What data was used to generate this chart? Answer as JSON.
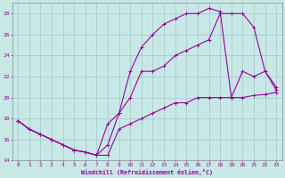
{
  "xlabel": "Windchill (Refroidissement éolien,°C)",
  "background_color": "#c8e8e8",
  "line_color": "#990099",
  "xlim": [
    -0.5,
    23.5
  ],
  "ylim": [
    14,
    29
  ],
  "xticks": [
    0,
    1,
    2,
    3,
    4,
    5,
    6,
    7,
    8,
    9,
    10,
    11,
    12,
    13,
    14,
    15,
    16,
    17,
    18,
    19,
    20,
    21,
    22,
    23
  ],
  "yticks": [
    14,
    16,
    18,
    20,
    22,
    24,
    26,
    28
  ],
  "grid_color": "#aacccc",
  "line1_x": [
    0,
    1,
    2,
    3,
    4,
    5,
    6,
    7,
    8,
    9,
    10,
    11,
    12,
    13,
    14,
    15,
    16,
    17,
    18,
    19,
    20,
    21,
    22,
    23
  ],
  "line1_y": [
    17.8,
    17.0,
    16.5,
    16.0,
    15.5,
    15.0,
    14.8,
    14.5,
    15.5,
    18.5,
    22.5,
    24.8,
    26.0,
    27.0,
    27.5,
    28.0,
    28.0,
    28.5,
    28.2,
    20.0,
    22.5,
    22.0,
    22.5,
    21.0
  ],
  "line2_x": [
    0,
    1,
    2,
    3,
    4,
    5,
    6,
    7,
    8,
    9,
    10,
    11,
    12,
    13,
    14,
    15,
    16,
    17,
    18,
    19,
    20,
    21,
    22,
    23
  ],
  "line2_y": [
    17.8,
    17.0,
    16.5,
    16.0,
    15.5,
    15.0,
    14.8,
    14.5,
    17.5,
    18.5,
    20.0,
    22.5,
    22.5,
    23.0,
    24.0,
    24.5,
    25.0,
    25.5,
    28.0,
    28.0,
    28.0,
    26.7,
    22.5,
    20.7
  ],
  "line3_x": [
    0,
    1,
    2,
    3,
    4,
    5,
    6,
    7,
    8,
    9,
    10,
    11,
    12,
    13,
    14,
    15,
    16,
    17,
    18,
    19,
    20,
    21,
    22,
    23
  ],
  "line3_y": [
    17.8,
    17.0,
    16.5,
    16.0,
    15.5,
    15.0,
    14.8,
    14.5,
    14.5,
    17.0,
    17.5,
    18.0,
    18.5,
    19.0,
    19.5,
    19.5,
    20.0,
    20.0,
    20.0,
    20.0,
    20.0,
    20.2,
    20.3,
    20.5
  ]
}
